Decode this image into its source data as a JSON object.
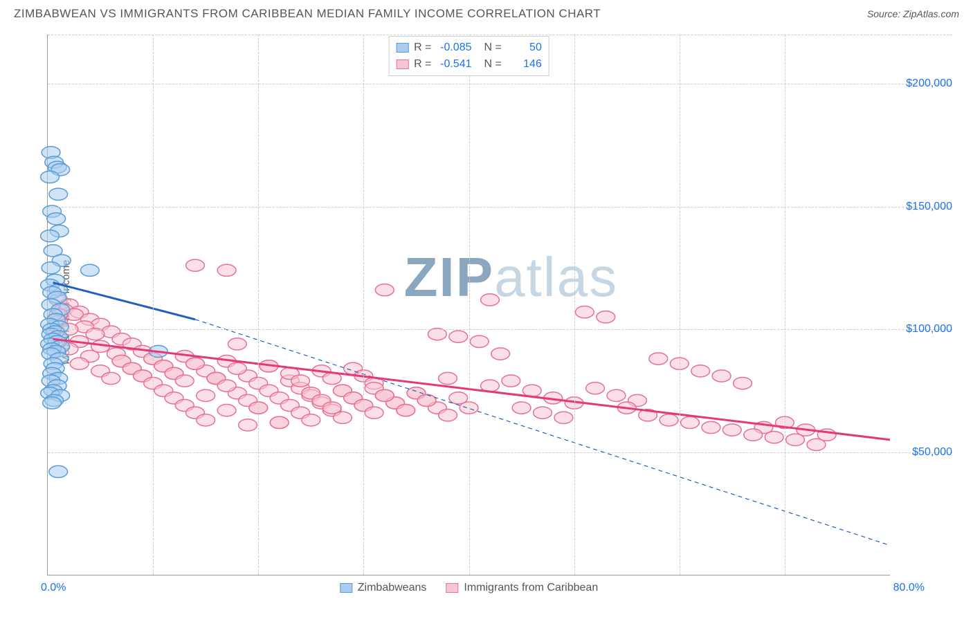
{
  "title": "ZIMBABWEAN VS IMMIGRANTS FROM CARIBBEAN MEDIAN FAMILY INCOME CORRELATION CHART",
  "source": "Source: ZipAtlas.com",
  "y_axis_label": "Median Family Income",
  "watermark_a": "ZIP",
  "watermark_b": "atlas",
  "x_min_label": "0.0%",
  "x_max_label": "80.0%",
  "x_domain": [
    0,
    80
  ],
  "y_domain": [
    0,
    220000
  ],
  "y_ticks": [
    {
      "v": 50000,
      "label": "$50,000"
    },
    {
      "v": 100000,
      "label": "$100,000"
    },
    {
      "v": 150000,
      "label": "$150,000"
    },
    {
      "v": 200000,
      "label": "$200,000"
    }
  ],
  "x_gridlines": [
    10,
    20,
    30,
    40,
    50,
    60,
    70
  ],
  "colors": {
    "blue_fill": "#a9cdf1",
    "blue_stroke": "#5b9bd5",
    "blue_line": "#1f5fbf",
    "pink_fill": "#f7c6d3",
    "pink_stroke": "#e86f96",
    "pink_line": "#e63776",
    "tick_label": "#1a73e8",
    "grid": "#cccccc",
    "wm_dark": "#8aa7bf",
    "wm_light": "#c6d6e3"
  },
  "series": [
    {
      "name": "Zimbabweans",
      "color_key": "blue",
      "r_value": "-0.085",
      "n_value": "50",
      "trend_solid": {
        "x1": 0.5,
        "y1": 119000,
        "x2": 14,
        "y2": 104000
      },
      "trend_dash": {
        "x1": 14,
        "y1": 104000,
        "x2": 80,
        "y2": 12000
      },
      "points": [
        [
          0.3,
          172000
        ],
        [
          0.6,
          168000
        ],
        [
          0.9,
          166000
        ],
        [
          1.2,
          165000
        ],
        [
          0.2,
          162000
        ],
        [
          1.0,
          155000
        ],
        [
          0.4,
          148000
        ],
        [
          0.8,
          145000
        ],
        [
          1.1,
          140000
        ],
        [
          0.2,
          138000
        ],
        [
          0.5,
          132000
        ],
        [
          1.3,
          128000
        ],
        [
          0.3,
          125000
        ],
        [
          4.0,
          124000
        ],
        [
          0.7,
          120000
        ],
        [
          0.2,
          118000
        ],
        [
          1.0,
          116000
        ],
        [
          0.4,
          115000
        ],
        [
          0.9,
          113000
        ],
        [
          0.3,
          110000
        ],
        [
          1.2,
          108000
        ],
        [
          0.5,
          106000
        ],
        [
          0.8,
          104000
        ],
        [
          0.2,
          102000
        ],
        [
          1.1,
          101000
        ],
        [
          0.4,
          100000
        ],
        [
          0.7,
          99000
        ],
        [
          0.3,
          98000
        ],
        [
          1.0,
          97000
        ],
        [
          0.5,
          96000
        ],
        [
          0.9,
          95000
        ],
        [
          0.2,
          94000
        ],
        [
          1.2,
          93000
        ],
        [
          0.4,
          92000
        ],
        [
          0.8,
          91000
        ],
        [
          0.3,
          90000
        ],
        [
          1.1,
          88000
        ],
        [
          0.5,
          86000
        ],
        [
          10.5,
          91000
        ],
        [
          0.7,
          84000
        ],
        [
          0.4,
          82000
        ],
        [
          1.0,
          80000
        ],
        [
          0.3,
          79000
        ],
        [
          0.9,
          77000
        ],
        [
          0.5,
          75000
        ],
        [
          0.2,
          74000
        ],
        [
          1.2,
          73000
        ],
        [
          0.6,
          71000
        ],
        [
          0.4,
          70000
        ],
        [
          1.0,
          42000
        ]
      ]
    },
    {
      "name": "Immigrants from Caribbean",
      "color_key": "pink",
      "r_value": "-0.541",
      "n_value": "146",
      "trend_solid": {
        "x1": 0.5,
        "y1": 96000,
        "x2": 80,
        "y2": 55000
      },
      "trend_dash": null,
      "points": [
        [
          1,
          112000
        ],
        [
          2,
          110000
        ],
        [
          1.5,
          108000
        ],
        [
          3,
          107000
        ],
        [
          2.5,
          106000
        ],
        [
          4,
          104000
        ],
        [
          1,
          103000
        ],
        [
          5,
          102000
        ],
        [
          3.5,
          101000
        ],
        [
          2,
          100000
        ],
        [
          6,
          99000
        ],
        [
          4.5,
          98000
        ],
        [
          1,
          106000
        ],
        [
          7,
          96000
        ],
        [
          3,
          95000
        ],
        [
          8,
          94000
        ],
        [
          5,
          93000
        ],
        [
          2,
          92000
        ],
        [
          9,
          91000
        ],
        [
          6.5,
          90000
        ],
        [
          4,
          89000
        ],
        [
          10,
          88000
        ],
        [
          7,
          87000
        ],
        [
          3,
          86000
        ],
        [
          11,
          85000
        ],
        [
          8,
          84000
        ],
        [
          5,
          83000
        ],
        [
          12,
          82000
        ],
        [
          9,
          81000
        ],
        [
          6,
          80000
        ],
        [
          13,
          89000
        ],
        [
          10,
          88000
        ],
        [
          7,
          87000
        ],
        [
          14,
          86000
        ],
        [
          11,
          85000
        ],
        [
          8,
          84000
        ],
        [
          15,
          83000
        ],
        [
          14,
          126000
        ],
        [
          17,
          124000
        ],
        [
          12,
          82000
        ],
        [
          9,
          81000
        ],
        [
          16,
          80000
        ],
        [
          13,
          79000
        ],
        [
          10,
          78000
        ],
        [
          17,
          87000
        ],
        [
          14,
          86000
        ],
        [
          11,
          75000
        ],
        [
          18,
          74000
        ],
        [
          15,
          73000
        ],
        [
          12,
          72000
        ],
        [
          19,
          81000
        ],
        [
          16,
          80000
        ],
        [
          13,
          69000
        ],
        [
          20,
          68000
        ],
        [
          17,
          67000
        ],
        [
          14,
          66000
        ],
        [
          21,
          85000
        ],
        [
          18,
          84000
        ],
        [
          15,
          63000
        ],
        [
          22,
          62000
        ],
        [
          19,
          61000
        ],
        [
          16,
          80000
        ],
        [
          23,
          79000
        ],
        [
          20,
          78000
        ],
        [
          17,
          77000
        ],
        [
          24,
          76000
        ],
        [
          21,
          75000
        ],
        [
          18,
          94000
        ],
        [
          25,
          73000
        ],
        [
          22,
          72000
        ],
        [
          19,
          71000
        ],
        [
          26,
          70000
        ],
        [
          23,
          69000
        ],
        [
          20,
          68000
        ],
        [
          27,
          67000
        ],
        [
          24,
          66000
        ],
        [
          21,
          85000
        ],
        [
          28,
          64000
        ],
        [
          25,
          63000
        ],
        [
          22,
          62000
        ],
        [
          29,
          84000
        ],
        [
          26,
          83000
        ],
        [
          23,
          82000
        ],
        [
          30,
          81000
        ],
        [
          27,
          80000
        ],
        [
          24,
          79000
        ],
        [
          31,
          78000
        ],
        [
          32,
          116000
        ],
        [
          42,
          112000
        ],
        [
          28,
          75000
        ],
        [
          25,
          74000
        ],
        [
          32,
          73000
        ],
        [
          29,
          72000
        ],
        [
          26,
          71000
        ],
        [
          33,
          70000
        ],
        [
          30,
          69000
        ],
        [
          27,
          68000
        ],
        [
          34,
          67000
        ],
        [
          31,
          76000
        ],
        [
          28,
          75000
        ],
        [
          35,
          74000
        ],
        [
          32,
          73000
        ],
        [
          29,
          72000
        ],
        [
          36,
          71000
        ],
        [
          33,
          70000
        ],
        [
          30,
          69000
        ],
        [
          37,
          68000
        ],
        [
          34,
          67000
        ],
        [
          31,
          66000
        ],
        [
          38,
          65000
        ],
        [
          35,
          74000
        ],
        [
          32,
          73000
        ],
        [
          39,
          72000
        ],
        [
          36,
          71000
        ],
        [
          40,
          68000
        ],
        [
          38,
          80000
        ],
        [
          42,
          77000
        ],
        [
          44,
          79000
        ],
        [
          46,
          75000
        ],
        [
          48,
          72000
        ],
        [
          50,
          70000
        ],
        [
          51,
          107000
        ],
        [
          53,
          105000
        ],
        [
          41,
          95000
        ],
        [
          52,
          76000
        ],
        [
          54,
          73000
        ],
        [
          56,
          71000
        ],
        [
          58,
          88000
        ],
        [
          60,
          86000
        ],
        [
          62,
          83000
        ],
        [
          64,
          81000
        ],
        [
          66,
          78000
        ],
        [
          68,
          60000
        ],
        [
          70,
          62000
        ],
        [
          72,
          59000
        ],
        [
          74,
          57000
        ],
        [
          45,
          68000
        ],
        [
          47,
          66000
        ],
        [
          49,
          64000
        ],
        [
          43,
          90000
        ],
        [
          55,
          68000
        ],
        [
          57,
          65000
        ],
        [
          59,
          63000
        ],
        [
          61,
          62000
        ],
        [
          63,
          60000
        ],
        [
          65,
          59000
        ],
        [
          67,
          57000
        ],
        [
          69,
          56000
        ],
        [
          71,
          55000
        ],
        [
          73,
          53000
        ],
        [
          37,
          98000
        ],
        [
          39,
          97000
        ]
      ]
    }
  ]
}
